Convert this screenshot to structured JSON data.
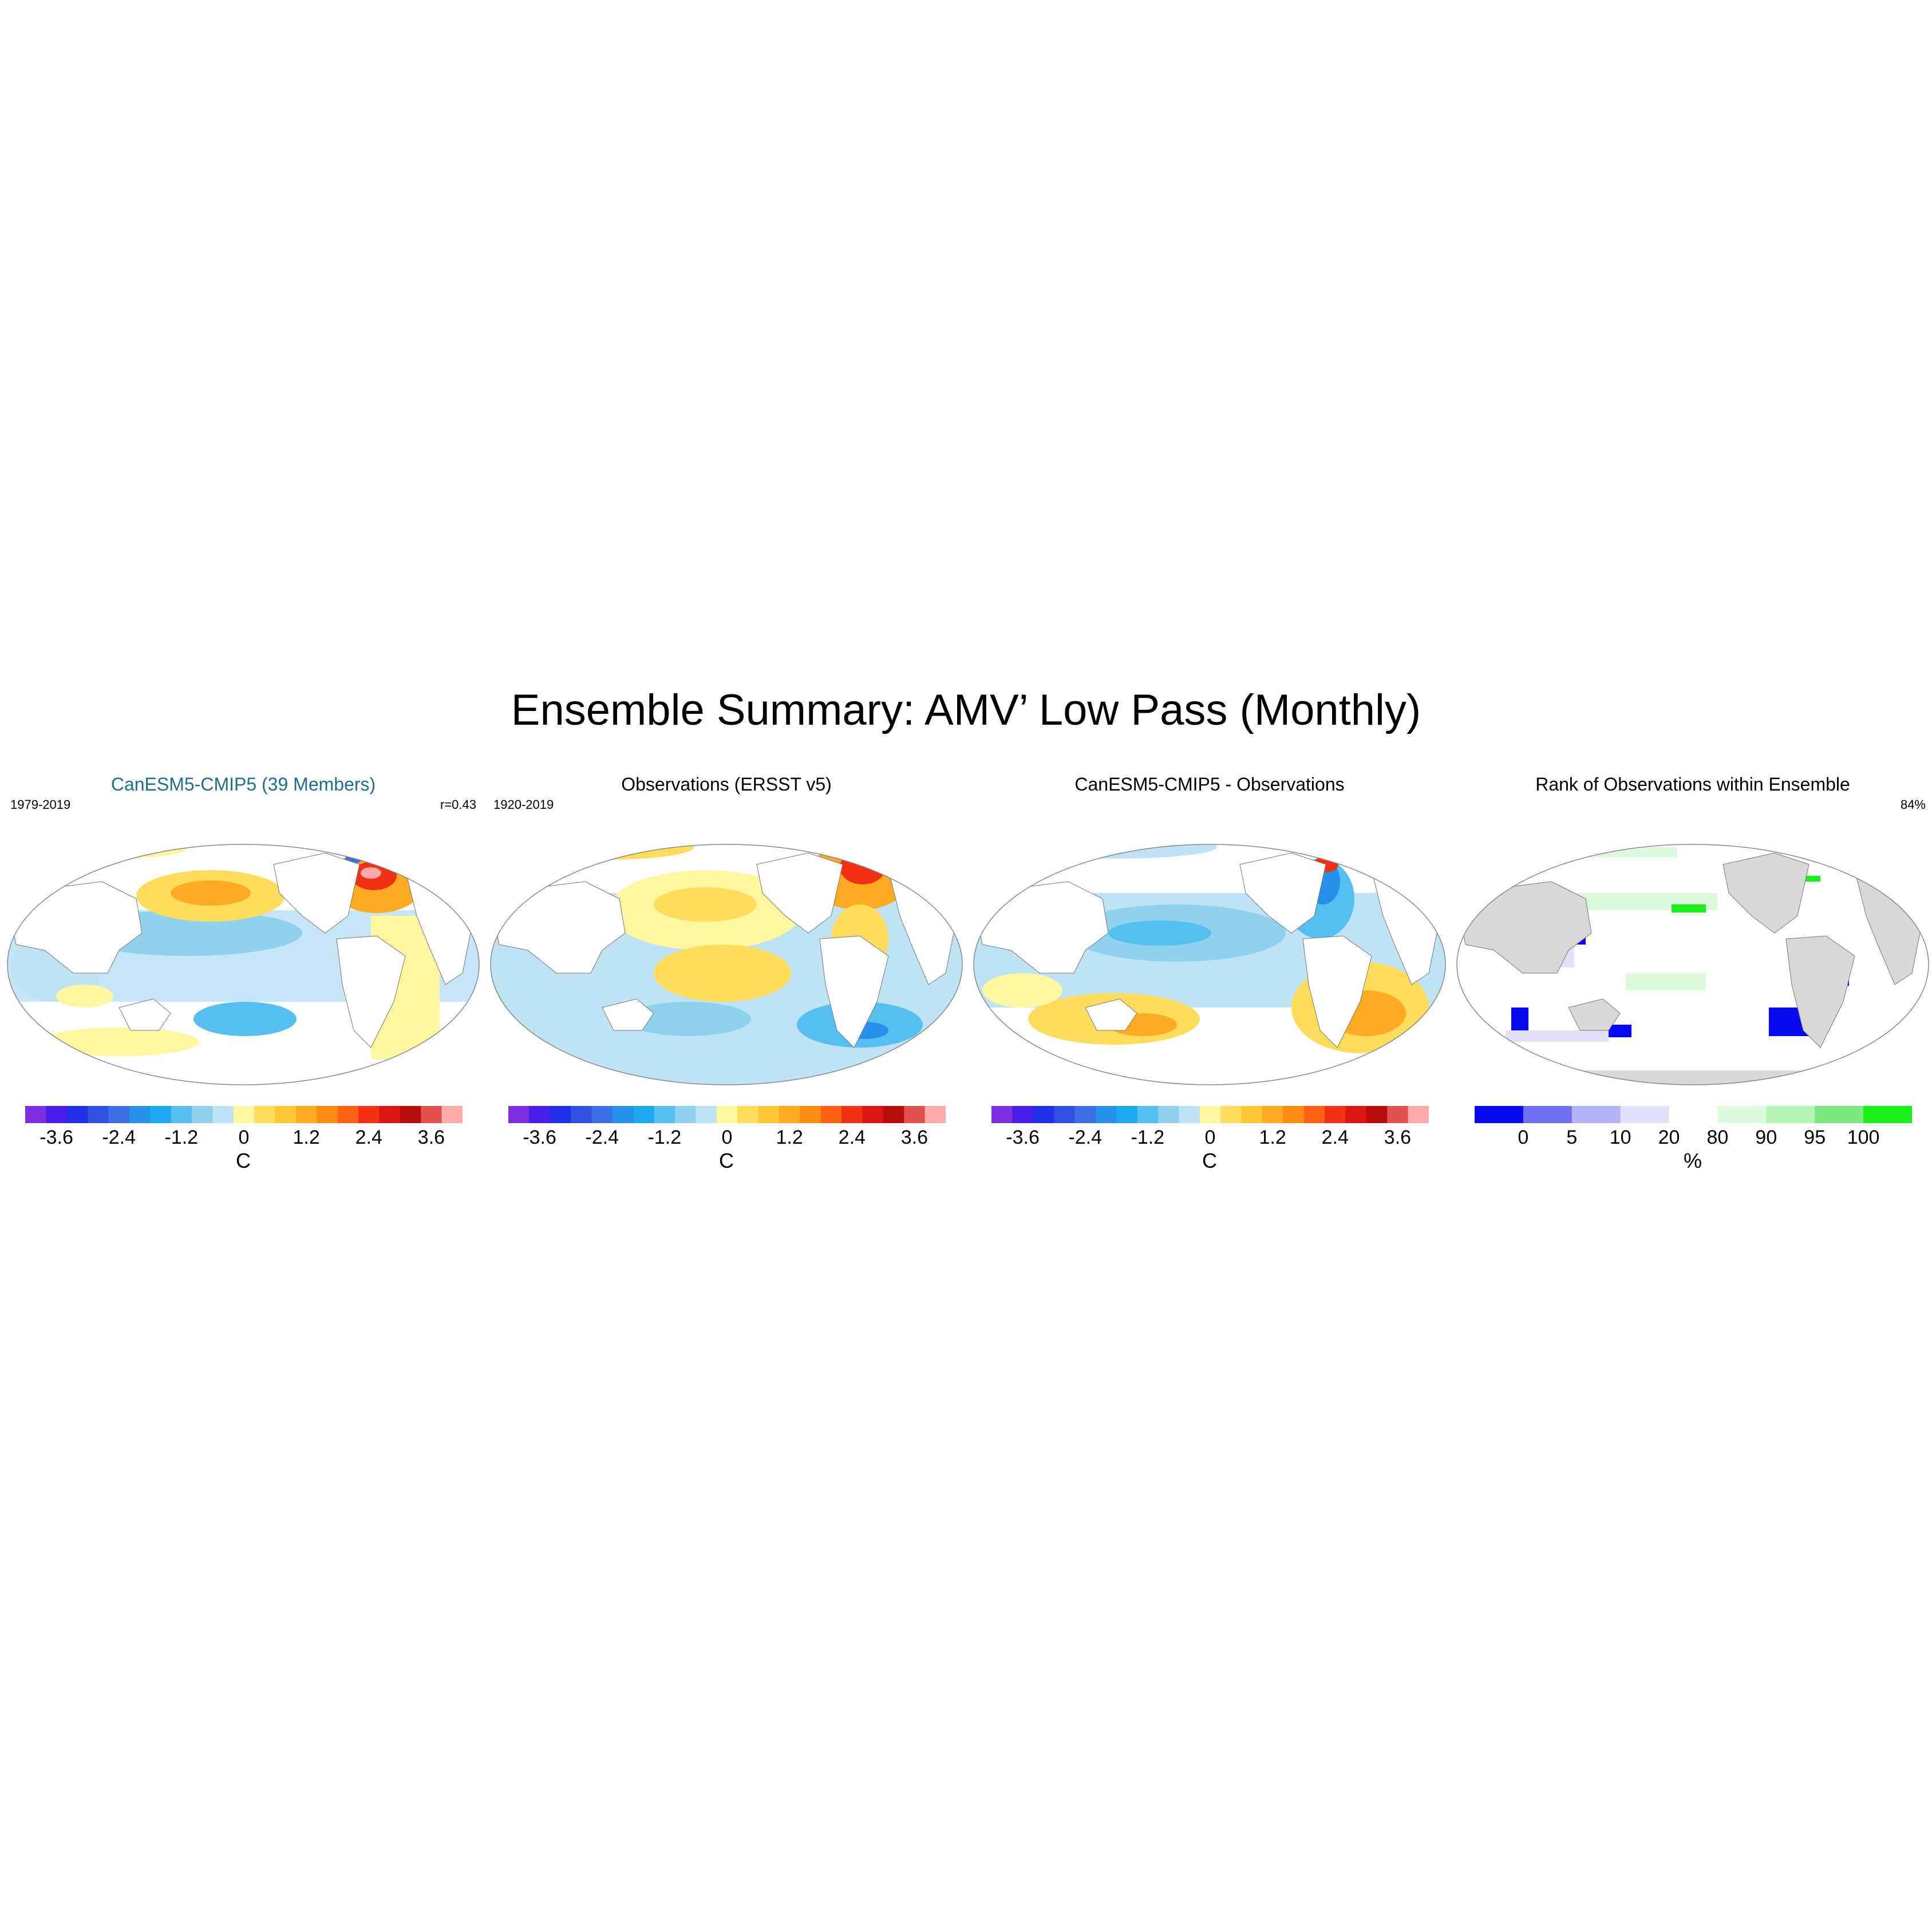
{
  "title": "Ensemble Summary: AMV’ Low Pass (Monthly)",
  "panels": [
    {
      "title": "CanESM5-CMIP5 (39 Members)",
      "left_note": "1979-2019",
      "right_note": "r=0.43",
      "colorbar": {
        "tick_labels": [
          "-3.6",
          "-2.4",
          "-1.2",
          "0",
          "1.2",
          "2.4",
          "3.6"
        ],
        "units": "C"
      }
    },
    {
      "title": "Observations (ERSST v5)",
      "left_note": "1920-2019",
      "right_note": "",
      "colorbar": {
        "tick_labels": [
          "-3.6",
          "-2.4",
          "-1.2",
          "0",
          "1.2",
          "2.4",
          "3.6"
        ],
        "units": "C"
      }
    },
    {
      "title": "CanESM5-CMIP5 - Observations",
      "left_note": "",
      "right_note": "",
      "colorbar": {
        "tick_labels": [
          "-3.6",
          "-2.4",
          "-1.2",
          "0",
          "1.2",
          "2.4",
          "3.6"
        ],
        "units": "C"
      }
    },
    {
      "title": "Rank of Observations within Ensemble",
      "left_note": "",
      "right_note": "84%",
      "colorbar": {
        "tick_labels": [
          "0",
          "5",
          "10",
          "20",
          "80",
          "90",
          "95",
          "100"
        ],
        "units": "%"
      }
    }
  ],
  "colors": {
    "temperature_scale": [
      "#7b2fe0",
      "#4a1ee8",
      "#1f2ee8",
      "#2f50e0",
      "#3a6fe6",
      "#2591e8",
      "#1ca9ef",
      "#55c0f0",
      "#8fd2f0",
      "#bfe3f5",
      "#fff6a0",
      "#ffdc5a",
      "#ffc534",
      "#ffab22",
      "#ff8a14",
      "#ff6212",
      "#f53012",
      "#de1414",
      "#b80c0c",
      "#e05050",
      "#ffaaaa"
    ],
    "rank_scale": [
      "#0a0af0",
      "#6f6ff2",
      "#b4b4f4",
      "#e0e0f8",
      "#ffffff",
      "#dcfadc",
      "#b4f4b4",
      "#7ee87e",
      "#18f018"
    ],
    "land": "#d8d8d8",
    "panel_title_accent": "#1f6f8b"
  }
}
